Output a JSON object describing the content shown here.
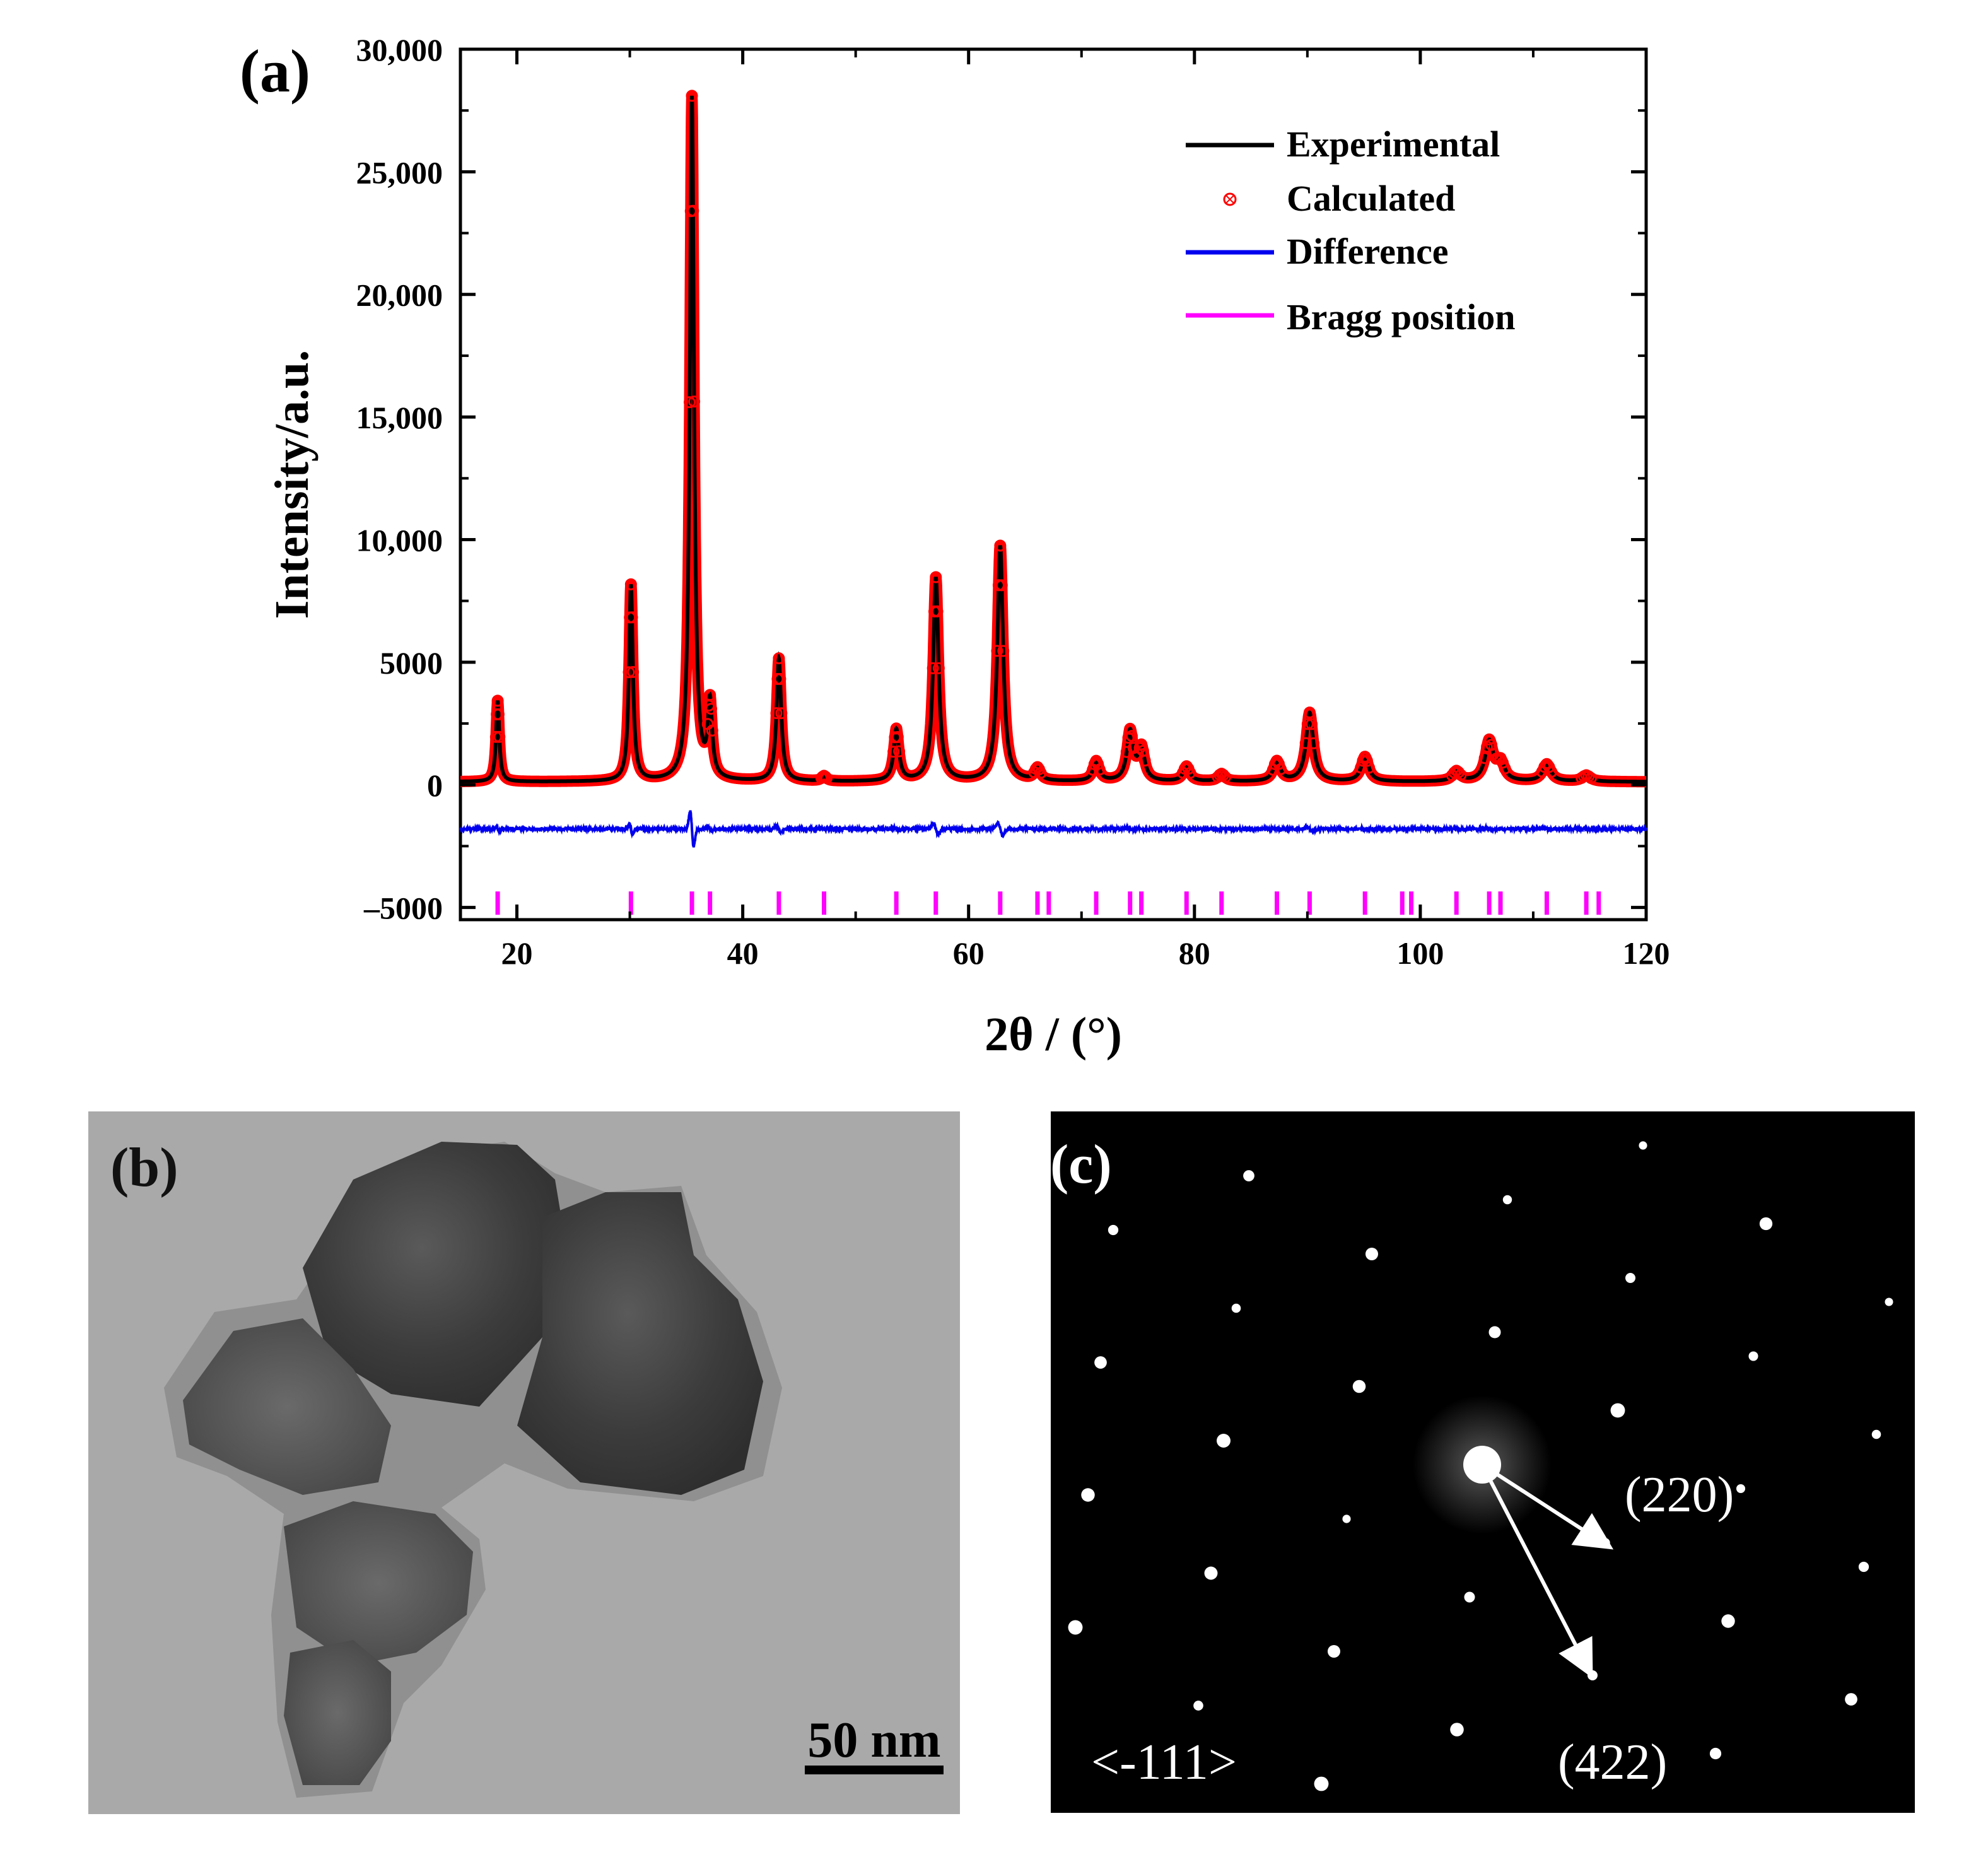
{
  "panels": {
    "a": {
      "label": "(a)"
    },
    "b": {
      "label": "(b)",
      "scale_bar": "50 nm"
    },
    "c": {
      "label": "(c)",
      "zone_axis": "<-111>",
      "spot_labels": [
        "(220)",
        "(422)"
      ]
    }
  },
  "chart_data": {
    "type": "line",
    "title": "",
    "xlabel": "2θ / (°)",
    "ylabel": "Intensity/a.u.",
    "xlim": [
      15,
      120
    ],
    "ylim": [
      -5500,
      30000
    ],
    "x_ticks": [
      20,
      40,
      60,
      80,
      100,
      120
    ],
    "x_tick_labels": [
      "20",
      "40",
      "60",
      "80",
      "100",
      "120"
    ],
    "y_ticks": [
      -5000,
      0,
      5000,
      10000,
      15000,
      20000,
      25000,
      30000
    ],
    "y_tick_labels": [
      "-5000",
      "0",
      "5000",
      "10,000",
      "15,000",
      "20,000",
      "25,000",
      "30,000"
    ],
    "legend": [
      "Experimental",
      "Calculated",
      "Difference",
      "Bragg position"
    ],
    "legend_position": "top-right",
    "baseline": 120,
    "difference_offset": -1800,
    "peaks": [
      {
        "x": 18.3,
        "intensity": 3300
      },
      {
        "x": 30.1,
        "intensity": 8000
      },
      {
        "x": 35.5,
        "intensity": 27900
      },
      {
        "x": 37.1,
        "intensity": 3000
      },
      {
        "x": 43.2,
        "intensity": 5000
      },
      {
        "x": 47.2,
        "intensity": 200
      },
      {
        "x": 53.6,
        "intensity": 2100
      },
      {
        "x": 57.1,
        "intensity": 8300
      },
      {
        "x": 62.8,
        "intensity": 9600
      },
      {
        "x": 66.1,
        "intensity": 500
      },
      {
        "x": 71.3,
        "intensity": 800
      },
      {
        "x": 74.3,
        "intensity": 2000
      },
      {
        "x": 75.3,
        "intensity": 1300
      },
      {
        "x": 79.3,
        "intensity": 600
      },
      {
        "x": 82.4,
        "intensity": 300
      },
      {
        "x": 87.3,
        "intensity": 800
      },
      {
        "x": 90.2,
        "intensity": 2800
      },
      {
        "x": 95.1,
        "intensity": 1000
      },
      {
        "x": 103.2,
        "intensity": 400
      },
      {
        "x": 106.1,
        "intensity": 1600
      },
      {
        "x": 107.1,
        "intensity": 700
      },
      {
        "x": 111.2,
        "intensity": 700
      },
      {
        "x": 114.7,
        "intensity": 250
      }
    ],
    "bragg_positions": [
      18.3,
      30.1,
      35.5,
      37.1,
      43.2,
      47.2,
      53.6,
      57.1,
      62.8,
      66.1,
      67.1,
      71.3,
      74.3,
      75.3,
      79.3,
      82.4,
      87.3,
      90.2,
      95.1,
      98.4,
      99.2,
      103.2,
      106.1,
      107.1,
      111.2,
      114.7,
      115.8
    ],
    "colors": {
      "experimental": "#000000",
      "calculated": "#ff0000",
      "difference": "#0000ee",
      "bragg": "#ff00ff"
    }
  }
}
